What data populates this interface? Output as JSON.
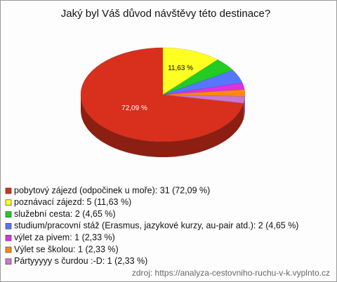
{
  "chart_data": {
    "type": "pie3d",
    "title": "Jaký byl Váš důvod návštěvy této destinace?",
    "categories": [
      "pobytový zájezd (odpočinek u moře): 31 (72,09 %)",
      "poznávací zájezd: 5 (11,63 %)",
      "služební cesta: 2 (4,65 %)",
      "studium/pracovní stáž (Erasmus, jazykové kurzy, au-pair atd.): 2 (4,65 %)",
      "výlet za pivem: 1 (2,33 %)",
      "Výlet se školou: 1 (2,33 %)",
      "Pártyyyyy s čurdou :-D: 1 (2,33 %)"
    ],
    "values": [
      72.09,
      11.63,
      4.65,
      4.65,
      2.33,
      2.33,
      2.33
    ],
    "value_labels": [
      "72,09 %",
      "11,63 %",
      null,
      null,
      null,
      null,
      null
    ],
    "colors": [
      "#d8301c",
      "#ffff22",
      "#22cc22",
      "#5577ff",
      "#dd33dd",
      "#ff8811",
      "#cc77cc"
    ],
    "source": "zdroj: https://analyza-cestovniho-ruchu-v-k.vyplnto.cz"
  }
}
